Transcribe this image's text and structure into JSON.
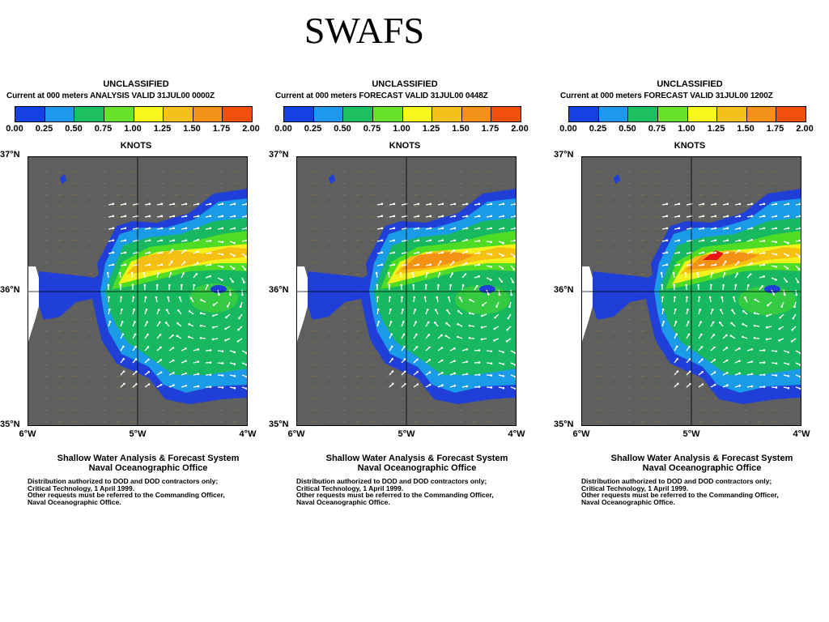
{
  "slide": {
    "title": "SWAFS"
  },
  "legend": {
    "colors": [
      "#1f3fd8",
      "#1a9be8",
      "#18b860",
      "#4fdc24",
      "#f2f21c",
      "#f5c012",
      "#f39214",
      "#ec5a10",
      "#e81410"
    ],
    "swatch_colors": [
      "#1540e6",
      "#1e97ee",
      "#1cc060",
      "#66e22a",
      "#f7f71e",
      "#f6c01a",
      "#f29218",
      "#f1500c",
      "#ff0a08"
    ],
    "ticks": [
      "0.00",
      "0.25",
      "0.50",
      "0.75",
      "1.00",
      "1.25",
      "1.50",
      "1.75",
      "2.00"
    ],
    "units": "KNOTS"
  },
  "axes": {
    "lat_labels": [
      "37°N",
      "36°N",
      "35°N"
    ],
    "lon_labels": [
      "6°W",
      "5°W",
      "4°W"
    ]
  },
  "panels": [
    {
      "classification": "UNCLASSIFIED",
      "caption": "Current at 000 meters ANALYSIS   VALID 31JUL00 0000Z",
      "org_line1": "Shallow Water Analysis & Forecast System",
      "org_line2": "Naval Oceanographic Office",
      "notes": [
        "Distribution authorized to DOD and DOD contractors only;",
        "Critical Technology, 1 April 1999.",
        "Other requests must be referred to the Commanding Officer,",
        "Naval Oceanographic Office."
      ]
    },
    {
      "classification": "UNCLASSIFIED",
      "caption": "Current at 000 meters FORECAST   VALID 31JUL00 0448Z",
      "org_line1": "Shallow Water Analysis & Forecast System",
      "org_line2": "Naval Oceanographic Office",
      "notes": [
        "Distribution authorized to DOD and DOD contractors only;",
        "Critical Technology, 1 April 1999.",
        "Other requests must be referred to the Commanding Officer,",
        "Naval Oceanographic Office."
      ]
    },
    {
      "classification": "UNCLASSIFIED",
      "caption": "Current at 000 meters FORECAST   VALID 31JUL00 1200Z",
      "org_line1": "Shallow Water Analysis & Forecast System",
      "org_line2": "Naval Oceanographic Office",
      "notes": [
        "Distribution authorized to DOD and DOD contractors only;",
        "Critical Technology, 1 April 1999.",
        "Other requests must be referred to the Commanding Officer,",
        "Naval Oceanographic Office."
      ]
    }
  ],
  "map_colors": {
    "land": "#5f5f5f",
    "coast_white": "#ffffff",
    "grid": "#000000",
    "land_arrow": "#c88a2e",
    "vector": "#ffffff"
  }
}
